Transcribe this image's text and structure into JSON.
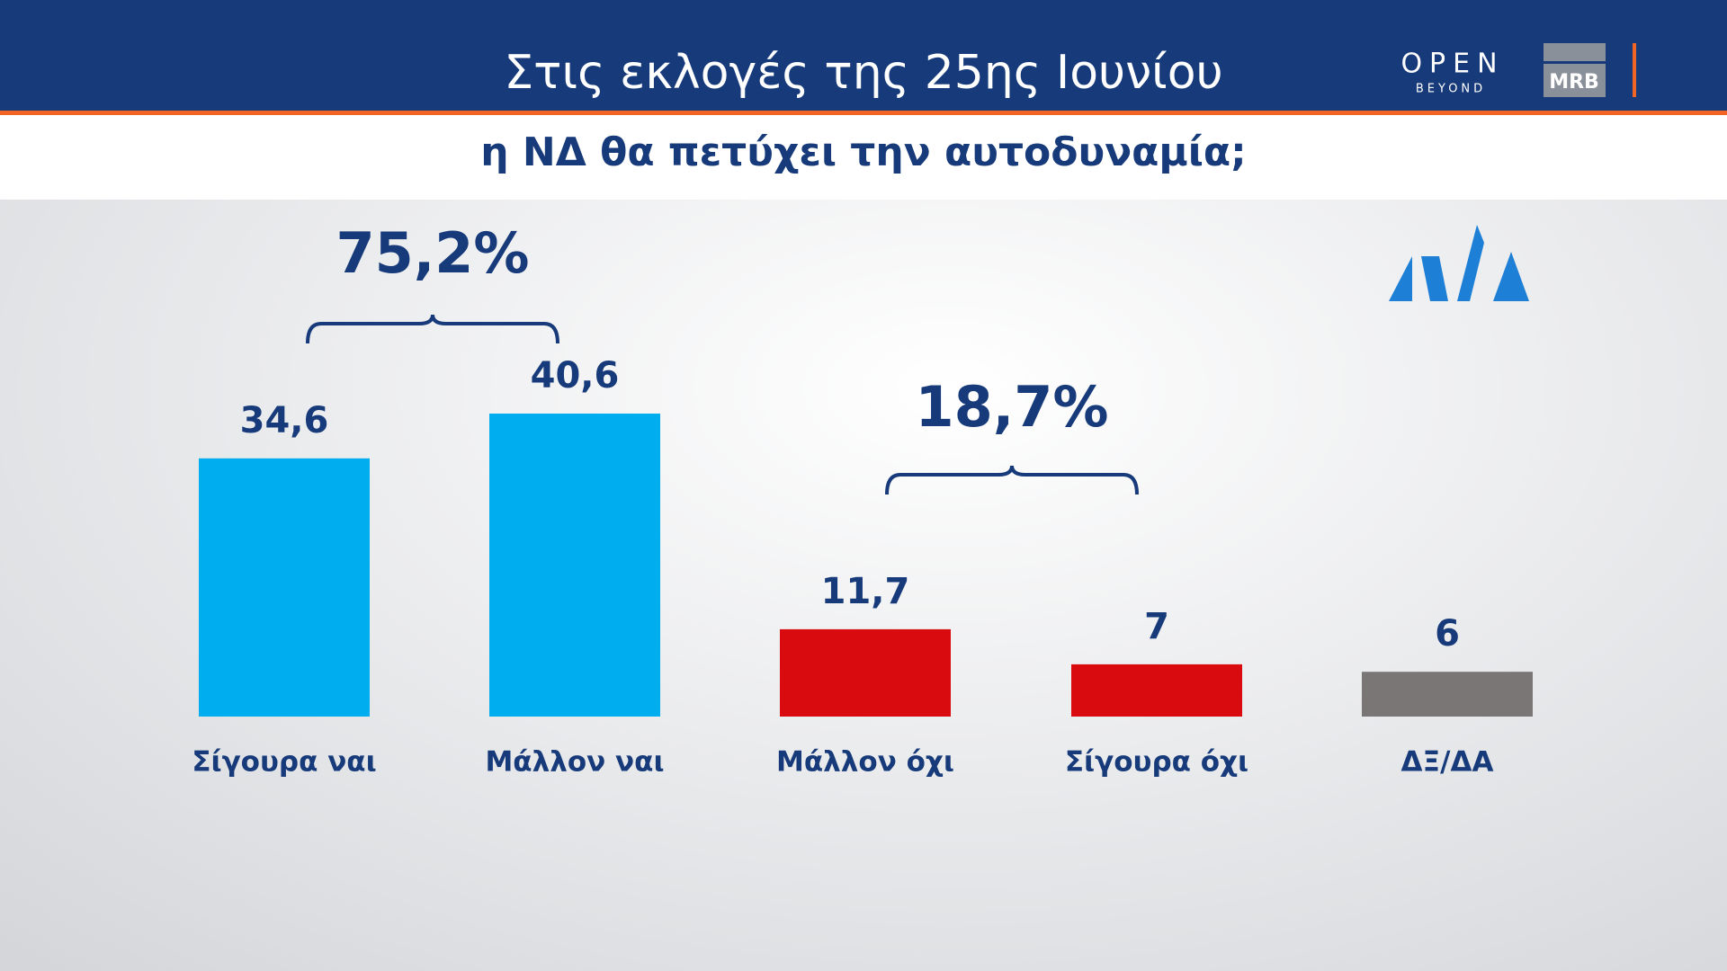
{
  "header": {
    "title": "Στις  εκλογές της 25ης Ιουνίου",
    "subtitle": "η ΝΔ θα πετύχει την αυτοδυναμία;"
  },
  "logos": {
    "open": "OPEN",
    "beyond": "BEYOND",
    "mrb": "MRB"
  },
  "chart_data": {
    "type": "bar",
    "categories": [
      "Σίγουρα ναι",
      "Μάλλον ναι",
      "Μάλλον όχι",
      "Σίγουρα όχι",
      "ΔΞ/ΔΑ"
    ],
    "values": [
      34.6,
      40.6,
      11.7,
      7,
      6
    ],
    "value_labels": [
      "34,6",
      "40,6",
      "11,7",
      "7",
      "6"
    ],
    "colors": [
      "#00aeef",
      "#00aeef",
      "#d90b0f",
      "#d90b0f",
      "#7a7675"
    ],
    "annotations": [
      "75,2%",
      "18,7%"
    ]
  }
}
